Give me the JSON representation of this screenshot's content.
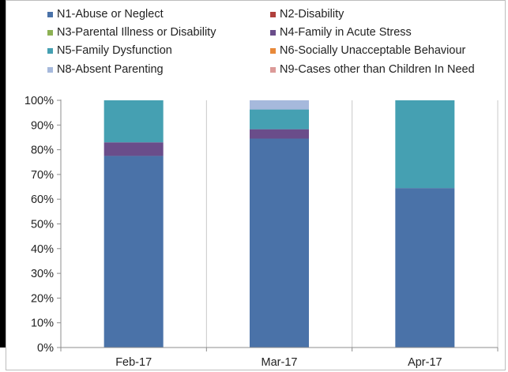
{
  "chart_data": {
    "type": "bar",
    "stacked": true,
    "percent_stacked": true,
    "categories": [
      "Feb-17",
      "Mar-17",
      "Apr-17"
    ],
    "ylim": [
      0,
      100
    ],
    "yticks": [
      "0%",
      "10%",
      "20%",
      "30%",
      "40%",
      "50%",
      "60%",
      "70%",
      "80%",
      "90%",
      "100%"
    ],
    "grid": "vertical lines between categories",
    "legend_position": "top",
    "series": [
      {
        "name": "N1-Abuse or Neglect",
        "color": "#4a72a8",
        "values": [
          77.5,
          84.5,
          64.5
        ]
      },
      {
        "name": "N2-Disability",
        "color": "#b0403c",
        "values": [
          0,
          0,
          0
        ]
      },
      {
        "name": "N3-Parental Illness or Disability",
        "color": "#8db154",
        "values": [
          0,
          0,
          0
        ]
      },
      {
        "name": "N4-Family in Acute Stress",
        "color": "#6a4d8a",
        "values": [
          5.5,
          3.8,
          0
        ]
      },
      {
        "name": "N5-Family Dysfunction",
        "color": "#45a0b2",
        "values": [
          17,
          8,
          35.5
        ]
      },
      {
        "name": "N6-Socially Unacceptable Behaviour",
        "color": "#e8893a",
        "values": [
          0,
          0,
          0
        ]
      },
      {
        "name": "N8-Absent Parenting",
        "color": "#a6b9dc",
        "values": [
          0,
          3.7,
          0
        ]
      },
      {
        "name": "N9-Cases other than Children In Need",
        "color": "#dc9a98",
        "values": [
          0,
          0,
          0
        ]
      }
    ]
  }
}
